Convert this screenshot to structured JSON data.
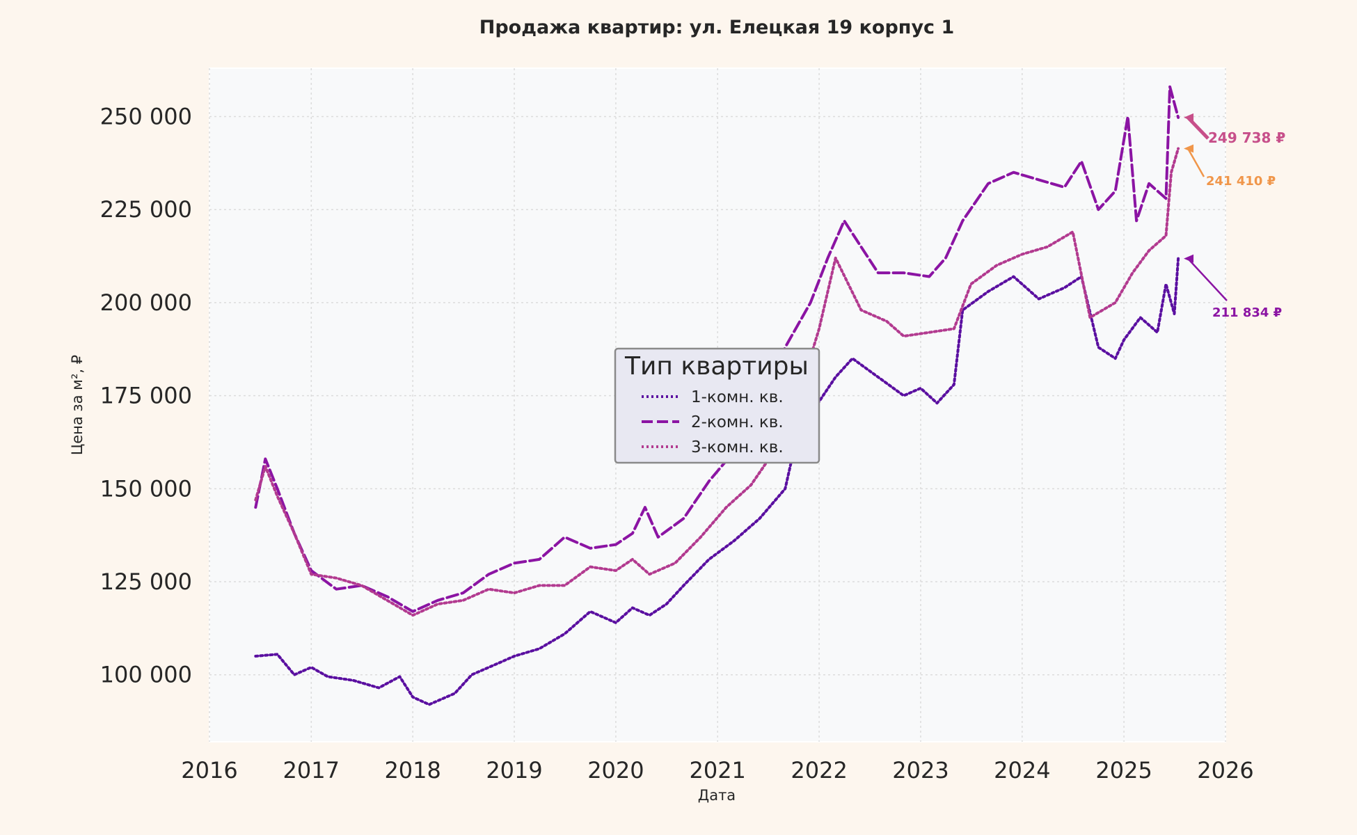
{
  "chart_data": {
    "type": "line",
    "title": "Продажа квартир: ул. Елецкая 19 корпус 1",
    "xlabel": "Дата",
    "ylabel": "Цена за м², ₽",
    "xlim": [
      "2016-01-01",
      "2026-01-01"
    ],
    "ylim": [
      82000,
      263000
    ],
    "x_ticks": [
      "2016",
      "2017",
      "2018",
      "2019",
      "2020",
      "2021",
      "2022",
      "2023",
      "2024",
      "2025",
      "2026"
    ],
    "y_ticks": [
      {
        "value": 100000,
        "label": "100 000"
      },
      {
        "value": 125000,
        "label": "125 000"
      },
      {
        "value": 150000,
        "label": "150 000"
      },
      {
        "value": 175000,
        "label": "175 000"
      },
      {
        "value": 200000,
        "label": "200 000"
      },
      {
        "value": 225000,
        "label": "225 000"
      },
      {
        "value": 250000,
        "label": "250 000"
      }
    ],
    "grid": true,
    "legend": {
      "title": "Тип квартиры",
      "placement": "center"
    },
    "series": [
      {
        "name": "1-комн. кв.",
        "color": "#5a0fa0",
        "style": "dotted",
        "points": [
          [
            "2016-06-15",
            105000
          ],
          [
            "2016-09-01",
            105500
          ],
          [
            "2016-11-01",
            100000
          ],
          [
            "2017-01-01",
            102000
          ],
          [
            "2017-03-01",
            99500
          ],
          [
            "2017-06-01",
            98500
          ],
          [
            "2017-09-01",
            96500
          ],
          [
            "2017-11-15",
            99500
          ],
          [
            "2018-01-01",
            94000
          ],
          [
            "2018-03-01",
            92000
          ],
          [
            "2018-06-01",
            95000
          ],
          [
            "2018-08-01",
            100000
          ],
          [
            "2018-11-01",
            103000
          ],
          [
            "2019-01-01",
            105000
          ],
          [
            "2019-04-01",
            107000
          ],
          [
            "2019-07-01",
            111000
          ],
          [
            "2019-10-01",
            117000
          ],
          [
            "2020-01-01",
            114000
          ],
          [
            "2020-03-01",
            118000
          ],
          [
            "2020-05-01",
            116000
          ],
          [
            "2020-07-01",
            119000
          ],
          [
            "2020-09-01",
            124000
          ],
          [
            "2020-12-01",
            131000
          ],
          [
            "2021-03-01",
            136000
          ],
          [
            "2021-06-01",
            142000
          ],
          [
            "2021-09-01",
            150000
          ],
          [
            "2021-10-01",
            160000
          ],
          [
            "2021-12-01",
            170000
          ],
          [
            "2022-03-01",
            180000
          ],
          [
            "2022-05-01",
            185000
          ],
          [
            "2022-08-01",
            180000
          ],
          [
            "2022-11-01",
            175000
          ],
          [
            "2023-01-01",
            177000
          ],
          [
            "2023-03-01",
            173000
          ],
          [
            "2023-05-01",
            178000
          ],
          [
            "2023-06-01",
            198000
          ],
          [
            "2023-09-01",
            203000
          ],
          [
            "2023-12-01",
            207000
          ],
          [
            "2024-03-01",
            201000
          ],
          [
            "2024-06-01",
            204000
          ],
          [
            "2024-08-01",
            207000
          ],
          [
            "2024-10-01",
            188000
          ],
          [
            "2024-12-01",
            185000
          ],
          [
            "2025-01-01",
            190000
          ],
          [
            "2025-03-01",
            196000
          ],
          [
            "2025-05-01",
            192000
          ],
          [
            "2025-06-01",
            205000
          ],
          [
            "2025-07-01",
            197000
          ],
          [
            "2025-07-15",
            211834
          ]
        ]
      },
      {
        "name": "2-комн. кв.",
        "color": "#8b14a3",
        "style": "dashed",
        "points": [
          [
            "2016-06-15",
            145000
          ],
          [
            "2016-07-20",
            158000
          ],
          [
            "2016-09-01",
            150000
          ],
          [
            "2016-11-01",
            138000
          ],
          [
            "2017-01-01",
            128000
          ],
          [
            "2017-04-01",
            123000
          ],
          [
            "2017-07-01",
            124000
          ],
          [
            "2017-10-01",
            121000
          ],
          [
            "2018-01-01",
            117000
          ],
          [
            "2018-04-01",
            120000
          ],
          [
            "2018-07-01",
            122000
          ],
          [
            "2018-10-01",
            127000
          ],
          [
            "2019-01-01",
            130000
          ],
          [
            "2019-04-01",
            131000
          ],
          [
            "2019-07-01",
            137000
          ],
          [
            "2019-10-01",
            134000
          ],
          [
            "2020-01-01",
            135000
          ],
          [
            "2020-03-01",
            138000
          ],
          [
            "2020-04-15",
            145000
          ],
          [
            "2020-06-01",
            137000
          ],
          [
            "2020-09-01",
            142000
          ],
          [
            "2020-12-01",
            152000
          ],
          [
            "2021-03-01",
            160000
          ],
          [
            "2021-06-01",
            172000
          ],
          [
            "2021-09-01",
            188000
          ],
          [
            "2021-12-01",
            200000
          ],
          [
            "2022-02-01",
            212000
          ],
          [
            "2022-04-01",
            222000
          ],
          [
            "2022-06-01",
            215000
          ],
          [
            "2022-08-01",
            208000
          ],
          [
            "2022-11-01",
            208000
          ],
          [
            "2023-02-01",
            207000
          ],
          [
            "2023-04-01",
            212000
          ],
          [
            "2023-06-01",
            222000
          ],
          [
            "2023-09-01",
            232000
          ],
          [
            "2023-12-01",
            235000
          ],
          [
            "2024-03-01",
            233000
          ],
          [
            "2024-06-01",
            231000
          ],
          [
            "2024-08-01",
            238000
          ],
          [
            "2024-10-01",
            225000
          ],
          [
            "2024-12-01",
            230000
          ],
          [
            "2025-01-15",
            250000
          ],
          [
            "2025-02-15",
            222000
          ],
          [
            "2025-04-01",
            232000
          ],
          [
            "2025-06-01",
            228000
          ],
          [
            "2025-06-15",
            258000
          ],
          [
            "2025-07-15",
            249738
          ]
        ]
      },
      {
        "name": "3-комн. кв.",
        "color": "#b23a8f",
        "style": "dotted",
        "points": [
          [
            "2016-06-15",
            147000
          ],
          [
            "2016-07-20",
            156000
          ],
          [
            "2016-09-01",
            148000
          ],
          [
            "2016-11-01",
            138000
          ],
          [
            "2017-01-01",
            127000
          ],
          [
            "2017-04-01",
            126000
          ],
          [
            "2017-07-01",
            124000
          ],
          [
            "2017-10-01",
            120000
          ],
          [
            "2018-01-01",
            116000
          ],
          [
            "2018-04-01",
            119000
          ],
          [
            "2018-07-01",
            120000
          ],
          [
            "2018-10-01",
            123000
          ],
          [
            "2019-01-01",
            122000
          ],
          [
            "2019-04-01",
            124000
          ],
          [
            "2019-07-01",
            124000
          ],
          [
            "2019-10-01",
            129000
          ],
          [
            "2020-01-01",
            128000
          ],
          [
            "2020-03-01",
            131000
          ],
          [
            "2020-05-01",
            127000
          ],
          [
            "2020-08-01",
            130000
          ],
          [
            "2020-11-01",
            137000
          ],
          [
            "2021-02-01",
            145000
          ],
          [
            "2021-05-01",
            151000
          ],
          [
            "2021-08-01",
            161000
          ],
          [
            "2021-11-01",
            178000
          ],
          [
            "2022-01-01",
            193000
          ],
          [
            "2022-03-01",
            212000
          ],
          [
            "2022-06-01",
            198000
          ],
          [
            "2022-09-01",
            195000
          ],
          [
            "2022-11-01",
            191000
          ],
          [
            "2023-02-01",
            192000
          ],
          [
            "2023-05-01",
            193000
          ],
          [
            "2023-07-01",
            205000
          ],
          [
            "2023-10-01",
            210000
          ],
          [
            "2024-01-01",
            213000
          ],
          [
            "2024-04-01",
            215000
          ],
          [
            "2024-07-01",
            219000
          ],
          [
            "2024-09-01",
            196000
          ],
          [
            "2024-12-01",
            200000
          ],
          [
            "2025-02-01",
            208000
          ],
          [
            "2025-04-01",
            214000
          ],
          [
            "2025-06-01",
            218000
          ],
          [
            "2025-06-20",
            235000
          ],
          [
            "2025-07-15",
            241410
          ]
        ]
      }
    ],
    "annotations": [
      {
        "label": "249 738 ₽",
        "value": 249738,
        "color": "#c74f8a",
        "series": "2-комн. кв."
      },
      {
        "label": "241 410 ₽",
        "value": 241410,
        "color": "#f0964a",
        "series": "3-комн. кв."
      },
      {
        "label": "211 834 ₽",
        "value": 211834,
        "color": "#8b14a3",
        "series": "1-комн. кв."
      }
    ]
  }
}
